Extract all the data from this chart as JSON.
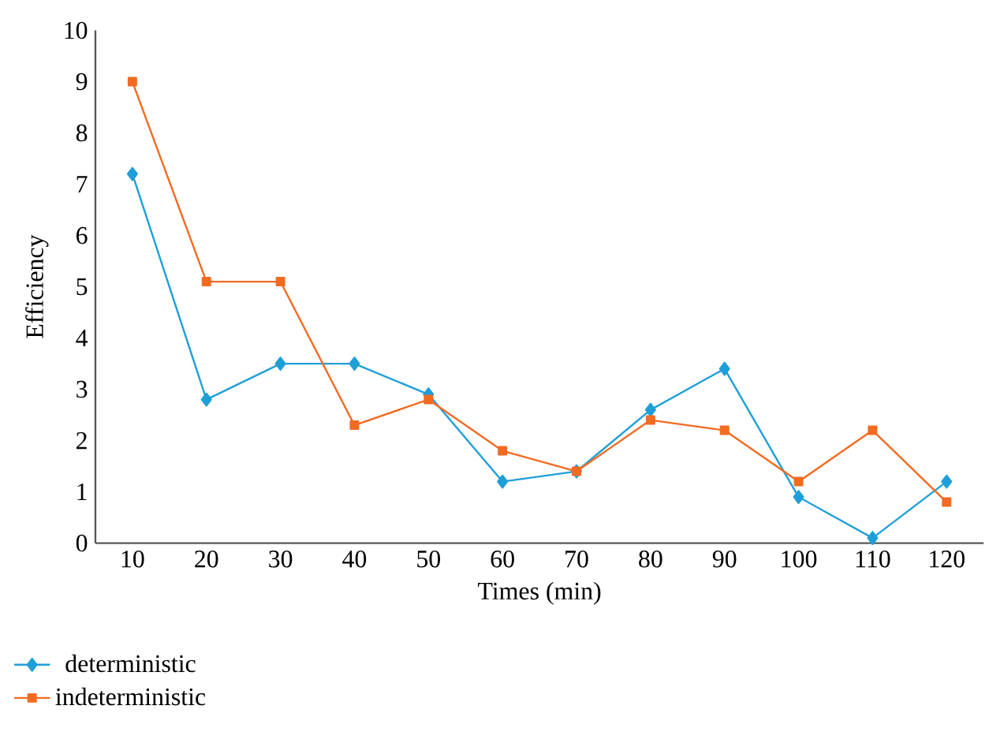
{
  "chart_data": {
    "type": "line",
    "xlabel": "Times (min)",
    "ylabel": "Efficiency",
    "categories": [
      "10",
      "20",
      "30",
      "40",
      "50",
      "60",
      "70",
      "80",
      "90",
      "100",
      "110",
      "120"
    ],
    "ylim": [
      0,
      10
    ],
    "yticks": [
      0,
      1,
      2,
      3,
      4,
      5,
      6,
      7,
      8,
      9,
      10
    ],
    "grid": false,
    "legend": "bottom left",
    "line_style": "solid",
    "series": [
      {
        "name": "deterministic",
        "color": "#1f9fd8",
        "marker": "diamond",
        "values": [
          7.2,
          2.8,
          3.5,
          3.5,
          2.9,
          1.2,
          1.4,
          2.6,
          3.4,
          0.9,
          0.1,
          1.2
        ]
      },
      {
        "name": "indeterministic",
        "color": "#f26b21",
        "marker": "square",
        "values": [
          9.0,
          5.1,
          5.1,
          2.3,
          2.8,
          1.8,
          1.4,
          2.4,
          2.2,
          1.2,
          2.2,
          0.8
        ]
      }
    ]
  }
}
